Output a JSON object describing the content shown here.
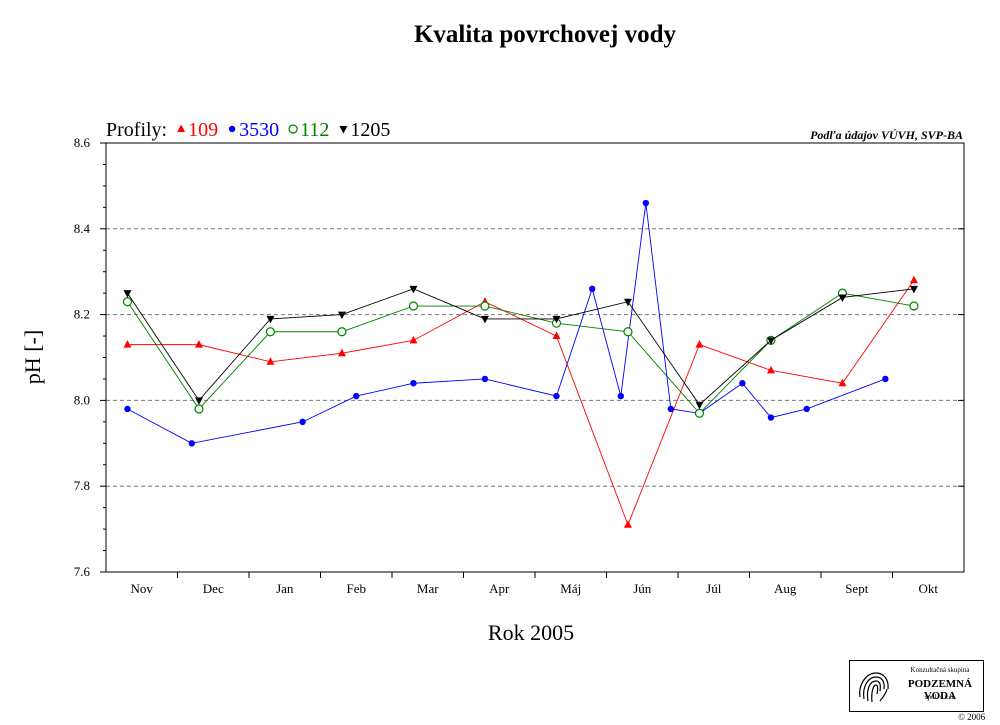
{
  "chart_data": {
    "type": "line",
    "title": "Kvalita povrchovej vody",
    "xlabel": "Rok 2005",
    "ylabel": "pH [-]",
    "legend_prefix": "Profily:",
    "source_note": "Podľa údajov VÚVH, SVP-BA",
    "ylim": [
      7.6,
      8.6
    ],
    "yticks": [
      "7.6",
      "7.8",
      "8.0",
      "8.2",
      "8.4",
      "8.6"
    ],
    "gridlines_y": [
      7.8,
      8.0,
      8.2,
      8.4
    ],
    "months": [
      "Nov",
      "Dec",
      "Jan",
      "Feb",
      "Mar",
      "Apr",
      "Máj",
      "Jún",
      "Júl",
      "Aug",
      "Sept",
      "Okt"
    ],
    "legend_placement": "top-left",
    "series": [
      {
        "name": "109",
        "color": "#ff0000",
        "marker": "triangle-up",
        "points": [
          [
            0.3,
            8.13
          ],
          [
            1.3,
            8.13
          ],
          [
            2.3,
            8.09
          ],
          [
            3.3,
            8.11
          ],
          [
            4.3,
            8.14
          ],
          [
            5.3,
            8.23
          ],
          [
            6.3,
            8.15
          ],
          [
            7.3,
            7.71
          ],
          [
            8.3,
            8.13
          ],
          [
            9.3,
            8.07
          ],
          [
            10.3,
            8.04
          ],
          [
            11.3,
            8.28
          ]
        ]
      },
      {
        "name": "3530",
        "color": "#0000ff",
        "marker": "circle-filled",
        "points": [
          [
            0.3,
            7.98
          ],
          [
            1.2,
            7.9
          ],
          [
            2.75,
            7.95
          ],
          [
            3.5,
            8.01
          ],
          [
            4.3,
            8.04
          ],
          [
            5.3,
            8.05
          ],
          [
            6.3,
            8.01
          ],
          [
            6.8,
            8.26
          ],
          [
            7.2,
            8.01
          ],
          [
            7.55,
            8.46
          ],
          [
            7.9,
            7.98
          ],
          [
            8.3,
            7.97
          ],
          [
            8.9,
            8.04
          ],
          [
            9.3,
            7.96
          ],
          [
            9.8,
            7.98
          ],
          [
            10.9,
            8.05
          ]
        ]
      },
      {
        "name": "112",
        "color": "#008000",
        "marker": "circle-open",
        "points": [
          [
            0.3,
            8.23
          ],
          [
            1.3,
            7.98
          ],
          [
            2.3,
            8.16
          ],
          [
            3.3,
            8.16
          ],
          [
            4.3,
            8.22
          ],
          [
            5.3,
            8.22
          ],
          [
            6.3,
            8.18
          ],
          [
            7.3,
            8.16
          ],
          [
            8.3,
            7.97
          ],
          [
            9.3,
            8.14
          ],
          [
            10.3,
            8.25
          ],
          [
            11.3,
            8.22
          ]
        ]
      },
      {
        "name": "1205",
        "color": "#000000",
        "marker": "triangle-down",
        "points": [
          [
            0.3,
            8.25
          ],
          [
            1.3,
            8.0
          ],
          [
            2.3,
            8.19
          ],
          [
            3.3,
            8.2
          ],
          [
            4.3,
            8.26
          ],
          [
            5.3,
            8.19
          ],
          [
            6.3,
            8.19
          ],
          [
            7.3,
            8.23
          ],
          [
            8.3,
            7.99
          ],
          [
            9.3,
            8.14
          ],
          [
            10.3,
            8.24
          ],
          [
            11.3,
            8.26
          ]
        ]
      }
    ]
  },
  "logo": {
    "line1": "Konzultačná skupina",
    "line2": "PODZEMNÁ VODA",
    "line3": "spol. s r. o."
  },
  "copyright": "© 2006"
}
